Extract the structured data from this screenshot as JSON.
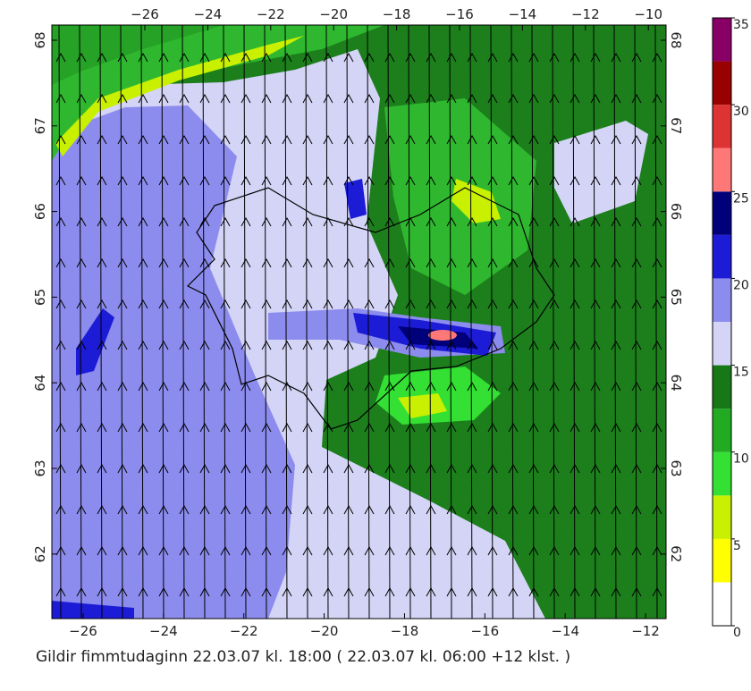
{
  "map": {
    "top_lon_ticks": [
      {
        "value": -26,
        "label": "−26"
      },
      {
        "value": -24,
        "label": "−24"
      },
      {
        "value": -22,
        "label": "−22"
      },
      {
        "value": -20,
        "label": "−20"
      },
      {
        "value": -18,
        "label": "−18"
      },
      {
        "value": -16,
        "label": "−16"
      },
      {
        "value": -14,
        "label": "−14"
      },
      {
        "value": -12,
        "label": "−12"
      },
      {
        "value": -10,
        "label": "−10"
      }
    ],
    "bottom_lon_ticks": [
      {
        "value": -26,
        "label": "−26"
      },
      {
        "value": -24,
        "label": "−24"
      },
      {
        "value": -22,
        "label": "−22"
      },
      {
        "value": -20,
        "label": "−20"
      },
      {
        "value": -18,
        "label": "−18"
      },
      {
        "value": -16,
        "label": "−16"
      },
      {
        "value": -14,
        "label": "−14"
      },
      {
        "value": -12,
        "label": "−12"
      }
    ],
    "lat_ticks": [
      62,
      63,
      64,
      65,
      66,
      67,
      68
    ],
    "colorbar": {
      "levels": [
        0,
        5,
        10,
        15,
        20,
        25,
        30,
        35
      ],
      "colors": [
        "#ffffff",
        "#ffff00",
        "#c8f000",
        "#33e033",
        "#22aa22",
        "#187818",
        "#d4d4f6",
        "#8c8cee",
        "#1c1cd6",
        "#00007a",
        "#ff7878",
        "#dd3333",
        "#990000",
        "#880066"
      ]
    },
    "caption": "Gildir fimmtudaginn 22.03.07 kl. 18:00 ( 22.03.07 kl. 06:00 +12 klst. )"
  }
}
